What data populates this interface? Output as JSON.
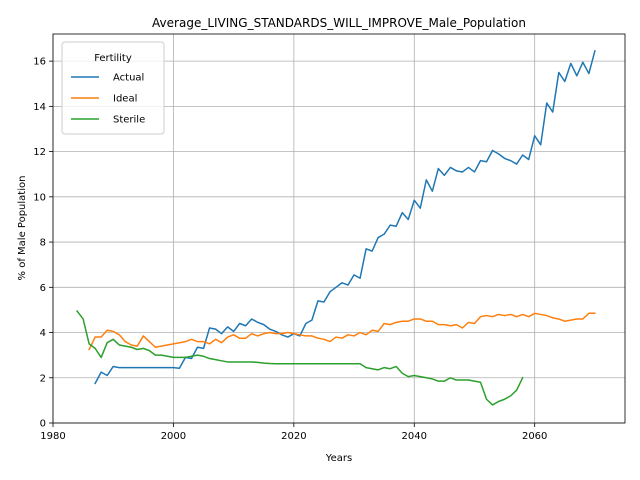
{
  "chart_data": {
    "type": "line",
    "title": "Average_LIVING_STANDARDS_WILL_IMPROVE_Male_Population",
    "xlabel": "Years",
    "ylabel": "% of Male Population",
    "xlim": [
      1980,
      2075
    ],
    "ylim": [
      0,
      17.2
    ],
    "xticks": [
      1980,
      2000,
      2020,
      2040,
      2060
    ],
    "yticks": [
      0,
      2,
      4,
      6,
      8,
      10,
      12,
      14,
      16
    ],
    "grid": true,
    "legend": {
      "title": "Fertility",
      "placement": "top-left"
    },
    "series": [
      {
        "name": "Actual",
        "color": "#1f77b4",
        "x": [
          1987,
          1988,
          1989,
          1990,
          1991,
          1992,
          1993,
          1994,
          1995,
          1996,
          1997,
          1998,
          1999,
          2000,
          2001,
          2002,
          2003,
          2004,
          2005,
          2006,
          2007,
          2008,
          2009,
          2010,
          2011,
          2012,
          2013,
          2014,
          2015,
          2016,
          2017,
          2018,
          2019,
          2020,
          2021,
          2022,
          2023,
          2024,
          2025,
          2026,
          2027,
          2028,
          2029,
          2030,
          2031,
          2032,
          2033,
          2034,
          2035,
          2036,
          2037,
          2038,
          2039,
          2040,
          2041,
          2042,
          2043,
          2044,
          2045,
          2046,
          2047,
          2048,
          2049,
          2050,
          2051,
          2052,
          2053,
          2054,
          2055,
          2056,
          2057,
          2058,
          2059,
          2060,
          2061,
          2062,
          2063,
          2064,
          2065,
          2066,
          2067,
          2068,
          2069,
          2070
        ],
        "y": [
          1.75,
          2.25,
          2.1,
          2.5,
          2.45,
          2.45,
          2.45,
          2.45,
          2.45,
          2.45,
          2.45,
          2.45,
          2.45,
          2.45,
          2.42,
          2.9,
          2.85,
          3.35,
          3.3,
          4.2,
          4.15,
          3.95,
          4.25,
          4.05,
          4.4,
          4.3,
          4.6,
          4.45,
          4.35,
          4.15,
          4.05,
          3.9,
          3.8,
          3.95,
          3.85,
          4.4,
          4.55,
          5.4,
          5.35,
          5.8,
          6.0,
          6.2,
          6.1,
          6.55,
          6.4,
          7.7,
          7.6,
          8.2,
          8.35,
          8.75,
          8.7,
          9.3,
          9.0,
          9.85,
          9.5,
          10.75,
          10.25,
          11.25,
          10.95,
          11.3,
          11.15,
          11.1,
          11.3,
          11.1,
          11.6,
          11.55,
          12.05,
          11.9,
          11.7,
          11.6,
          11.45,
          11.85,
          11.65,
          12.7,
          12.3,
          14.15,
          13.75,
          15.5,
          15.1,
          15.9,
          15.35,
          15.95,
          15.45,
          16.45
        ]
      },
      {
        "name": "Ideal",
        "color": "#ff7f0e",
        "x": [
          1986,
          1987,
          1988,
          1989,
          1990,
          1991,
          1992,
          1993,
          1994,
          1995,
          1996,
          1997,
          1998,
          1999,
          2000,
          2001,
          2002,
          2003,
          2004,
          2005,
          2006,
          2007,
          2008,
          2009,
          2010,
          2011,
          2012,
          2013,
          2014,
          2015,
          2016,
          2017,
          2018,
          2019,
          2020,
          2021,
          2022,
          2023,
          2024,
          2025,
          2026,
          2027,
          2028,
          2029,
          2030,
          2031,
          2032,
          2033,
          2034,
          2035,
          2036,
          2037,
          2038,
          2039,
          2040,
          2041,
          2042,
          2043,
          2044,
          2045,
          2046,
          2047,
          2048,
          2049,
          2050,
          2051,
          2052,
          2053,
          2054,
          2055,
          2056,
          2057,
          2058,
          2059,
          2060,
          2061,
          2062,
          2063,
          2064,
          2065,
          2066,
          2067,
          2068,
          2069,
          2070
        ],
        "y": [
          3.25,
          3.8,
          3.8,
          4.1,
          4.05,
          3.9,
          3.6,
          3.45,
          3.4,
          3.85,
          3.6,
          3.35,
          3.4,
          3.45,
          3.5,
          3.55,
          3.6,
          3.7,
          3.6,
          3.6,
          3.5,
          3.7,
          3.55,
          3.8,
          3.9,
          3.75,
          3.75,
          3.95,
          3.85,
          3.95,
          4.0,
          3.95,
          3.95,
          4.0,
          3.95,
          3.9,
          3.85,
          3.85,
          3.75,
          3.7,
          3.6,
          3.8,
          3.75,
          3.9,
          3.85,
          4.0,
          3.9,
          4.1,
          4.05,
          4.4,
          4.35,
          4.45,
          4.5,
          4.5,
          4.6,
          4.6,
          4.5,
          4.5,
          4.35,
          4.35,
          4.3,
          4.35,
          4.2,
          4.45,
          4.4,
          4.7,
          4.75,
          4.7,
          4.8,
          4.75,
          4.8,
          4.7,
          4.8,
          4.7,
          4.85,
          4.8,
          4.75,
          4.65,
          4.6,
          4.5,
          4.55,
          4.6,
          4.6,
          4.85,
          4.85
        ]
      },
      {
        "name": "Sterile",
        "color": "#2ca02c",
        "x": [
          1984,
          1985,
          1986,
          1987,
          1988,
          1989,
          1990,
          1991,
          1992,
          1993,
          1994,
          1995,
          1996,
          1997,
          1998,
          1999,
          2000,
          2001,
          2002,
          2003,
          2004,
          2005,
          2006,
          2007,
          2008,
          2009,
          2010,
          2011,
          2012,
          2013,
          2014,
          2015,
          2016,
          2017,
          2018,
          2019,
          2020,
          2021,
          2022,
          2023,
          2024,
          2025,
          2026,
          2027,
          2028,
          2029,
          2030,
          2031,
          2032,
          2033,
          2034,
          2035,
          2036,
          2037,
          2038,
          2039,
          2040,
          2041,
          2042,
          2043,
          2044,
          2045,
          2046,
          2047,
          2048,
          2049,
          2050,
          2051,
          2052,
          2053,
          2054,
          2055,
          2056,
          2057,
          2058
        ],
        "y": [
          4.95,
          4.6,
          3.5,
          3.3,
          2.9,
          3.55,
          3.7,
          3.45,
          3.4,
          3.35,
          3.25,
          3.3,
          3.2,
          3.0,
          3.0,
          2.95,
          2.9,
          2.9,
          2.9,
          2.95,
          3.0,
          2.95,
          2.85,
          2.8,
          2.75,
          2.7,
          2.7,
          2.7,
          2.7,
          2.7,
          2.68,
          2.65,
          2.63,
          2.62,
          2.62,
          2.62,
          2.62,
          2.62,
          2.62,
          2.62,
          2.62,
          2.62,
          2.62,
          2.62,
          2.62,
          2.62,
          2.62,
          2.62,
          2.45,
          2.4,
          2.35,
          2.45,
          2.4,
          2.5,
          2.2,
          2.05,
          2.1,
          2.05,
          2.0,
          1.95,
          1.85,
          1.85,
          2.0,
          1.9,
          1.9,
          1.9,
          1.85,
          1.8,
          1.05,
          0.8,
          0.95,
          1.05,
          1.2,
          1.45,
          2.0
        ]
      }
    ]
  }
}
